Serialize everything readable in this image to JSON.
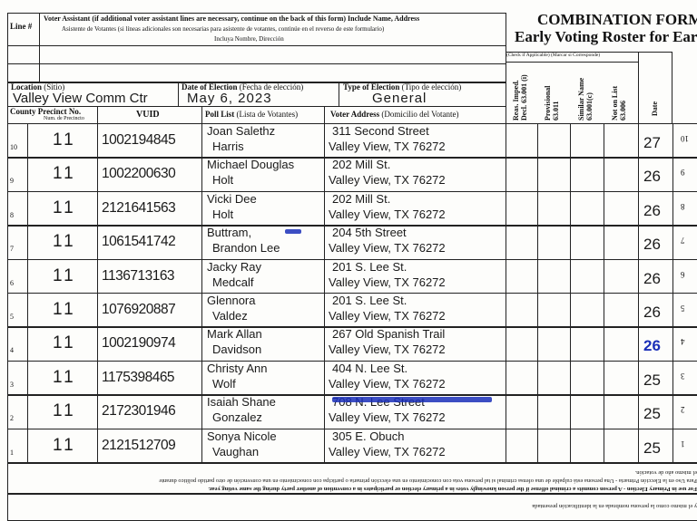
{
  "form": {
    "title_line1": "COMBINATION FORM",
    "title_line2": "Early Voting Roster for Earl"
  },
  "assistant_section": {
    "line_label": "Line #",
    "heading_en": "Voter Assistant (if additional voter assistant lines are necessary, continue on the back of this form)  Include Name, Address",
    "heading_es": "Asistente de Votantes (si líneas adicionales son necesarias para asistente de votantes, continúe en el reverso de este formulario)",
    "heading_es2": "Incluya Nombre, Dirección"
  },
  "election_info": {
    "location_label": "Location",
    "location_label_es": "(Sitio)",
    "location_value": "Valley View Comm Ctr",
    "date_label": "Date of Election",
    "date_label_es": "(Fecha de elección)",
    "date_value": "May 6, 2023",
    "type_label": "Type of Election",
    "type_label_es": "(Tipo de elección)",
    "type_value": "General"
  },
  "columns": {
    "precinct": "County Precinct No.",
    "precinct_es": "Num. de Precincto",
    "vuid": "VUID",
    "poll_list": "Poll List",
    "poll_list_es": "(Lista de Votantes)",
    "address": "Voter Address",
    "address_es": "(Domicilio del Votante)",
    "check_header": "(Check if Applicable) (Marcar si Corresponde)",
    "reas_imped": "Reas. Imped. Decl. 63.001 (i)",
    "provisional": "Provisional 63.011",
    "similar_name": "Similar Name 63.001(c)",
    "not_on_list": "Not on List 63.006",
    "date": "Date"
  },
  "rows": [
    {
      "line": "10",
      "precinct": "11",
      "vuid": "1002194845",
      "name1": "Joan Salethz",
      "name2": "Harris",
      "addr1": "311 Second Street",
      "addr2": "Valley View, TX 76272",
      "date": "27",
      "mirror": "10"
    },
    {
      "line": "9",
      "precinct": "11",
      "vuid": "1002200630",
      "name1": "Michael Douglas",
      "name2": "Holt",
      "addr1": "202 Mill St.",
      "addr2": "Valley View, TX 76272",
      "date": "26",
      "mirror": "9"
    },
    {
      "line": "8",
      "precinct": "11",
      "vuid": "2121641563",
      "name1": "Vicki Dee",
      "name2": "Holt",
      "addr1": "202 Mill St.",
      "addr2": "Valley View, TX 76272",
      "date": "26",
      "mirror": "8"
    },
    {
      "line": "7",
      "precinct": "11",
      "vuid": "1061541742",
      "name1": "Buttram,",
      "name2": "Brandon Lee",
      "addr1": "204 5th Street",
      "addr2": "Valley View, TX 76272",
      "date": "26",
      "mirror": "7"
    },
    {
      "line": "6",
      "precinct": "11",
      "vuid": "1136713163",
      "name1": "Jacky Ray",
      "name2": "Medcalf",
      "addr1": "201 S. Lee St.",
      "addr2": "Valley View, TX 76272",
      "date": "26",
      "mirror": "6"
    },
    {
      "line": "5",
      "precinct": "11",
      "vuid": "1076920887",
      "name1": "Glennora",
      "name2": "Valdez",
      "addr1": "201 S. Lee St.",
      "addr2": "Valley View, TX 76272",
      "date": "26",
      "mirror": "5"
    },
    {
      "line": "4",
      "precinct": "11",
      "vuid": "1002190974",
      "name1": "Mark Allan",
      "name2": "Davidson",
      "addr1": "267 Old Spanish Trail",
      "addr2": "Valley View, TX 76272",
      "date": "26",
      "mirror": "4"
    },
    {
      "line": "3",
      "precinct": "11",
      "vuid": "1175398465",
      "name1": "Christy Ann",
      "name2": "Wolf",
      "addr1": "404 N. Lee St.",
      "addr2": "Valley View, TX 76272",
      "date": "25",
      "mirror": "3"
    },
    {
      "line": "2",
      "precinct": "11",
      "vuid": "2172301946",
      "name1": "Isaiah Shane",
      "name2": "Gonzalez",
      "addr1": "708 N. Lee Street",
      "addr2": "Valley View, TX 76272",
      "date": "25",
      "mirror": "2"
    },
    {
      "line": "1",
      "precinct": "11",
      "vuid": "2121512709",
      "name1": "Sonya Nicole",
      "name2": "Vaughan",
      "addr1": "305 E. Obuch",
      "addr2": "Valley View, TX 76272",
      "date": "25",
      "mirror": "1"
    }
  ],
  "footer": {
    "primary_en": "For use in Primary Election - A person commits a criminal offense if the person knowingly votes in a primary election or participates in a convention of another party during the same voting year.",
    "primary_es": "Para Uso en la Elección Primaria - Una persona está culpable de una ofensa criminal si tal persona vota con conocimiento en una elección primaria o participa con conocimiento en una convención de otro partido político durante",
    "primary_es2": "el mismo año de votación.",
    "affidavit_fragment": "y el mismo como la persona nombrada en la identificación presentada"
  },
  "colors": {
    "ink": "#1a1a1a",
    "blue_ink": "#1a2fb8",
    "border": "#222222"
  }
}
